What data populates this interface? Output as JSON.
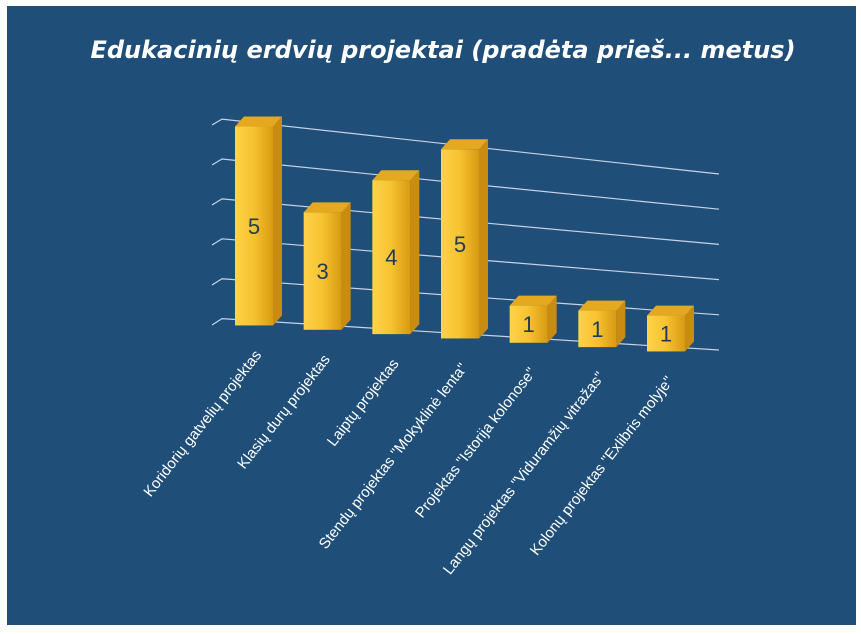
{
  "chart_data": {
    "type": "bar",
    "title": "Edukacinių erdvių  projektai (pradėta prieš... metus)",
    "categories": [
      "Koridorių  gatvelių projektas",
      "Klasių  durų  projektas",
      "Laiptų  projektas",
      "Stendų projektas \"Mokyklinė lenta\"",
      "Projektas \"Istorija kolonose\"",
      "Langų projektas \"Viduramžių vitražas\"",
      "Kolonų projektas \"Exlibris molyje\""
    ],
    "values": [
      5,
      3,
      4,
      5,
      1,
      1,
      1
    ],
    "value_labels": [
      "5",
      "3",
      "4",
      "5",
      "1",
      "1",
      "1"
    ],
    "ylim": [
      0,
      5
    ],
    "grid": true,
    "legend": "none",
    "bar_color": "#f2b92a",
    "background_color": "#1f4e79"
  }
}
